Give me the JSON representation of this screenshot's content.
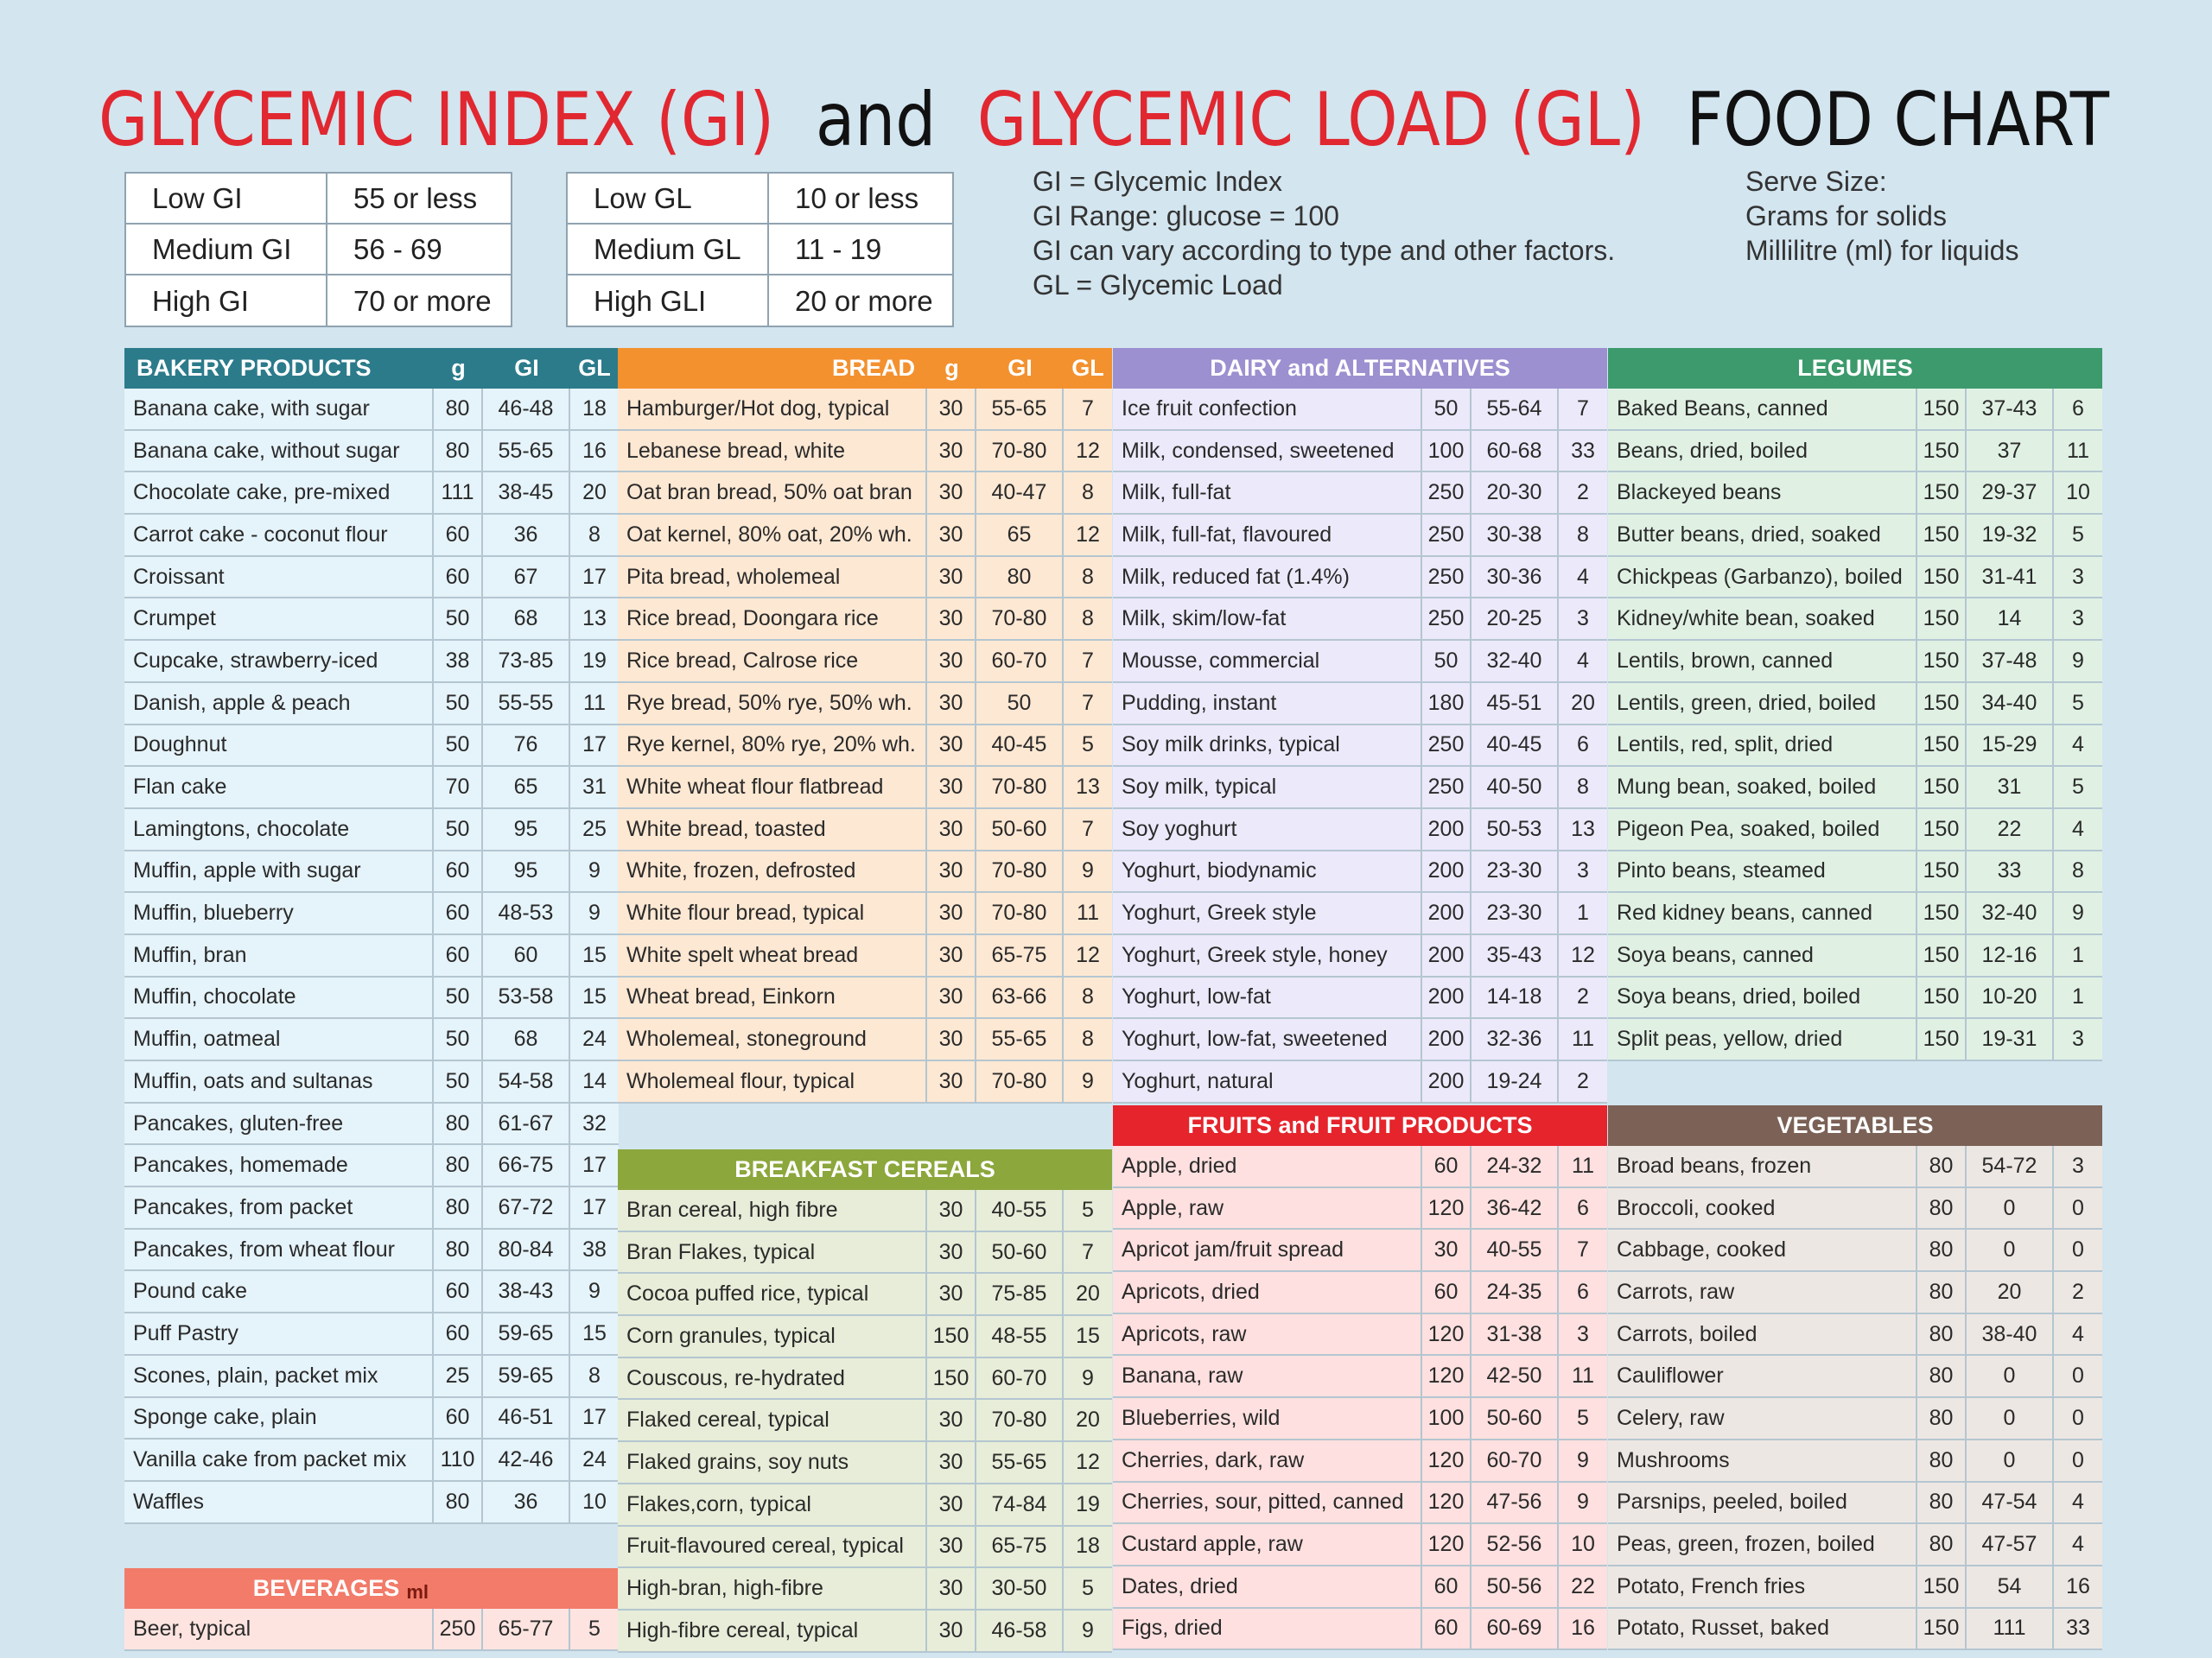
{
  "title": [
    "GLYCEMIC INDEX (GI)",
    "and",
    "GLYCEMIC LOAD (GL)",
    "FOOD CHART"
  ],
  "legend_gi": [
    [
      "Low GI",
      "55 or less"
    ],
    [
      "Medium GI",
      "56 - 69"
    ],
    [
      "High GI",
      "70 or more"
    ]
  ],
  "legend_gl": [
    [
      "Low GL",
      "10 or less"
    ],
    [
      "Medium GL",
      "11 - 19"
    ],
    [
      "High GLI",
      "20 or more"
    ]
  ],
  "notes": [
    "GI = Glycemic Index",
    "GI Range: glucose = 100",
    "GI can vary according to type and other factors.",
    "GL = Glycemic Load"
  ],
  "serve": [
    "Serve Size:",
    "Grams for solids",
    "Millilitre (ml) for liquids"
  ],
  "sections": [
    {
      "title": "BAKERY PRODUCTS",
      "columns": [
        "g",
        "GI",
        "GL"
      ],
      "rows": [
        [
          "Banana cake, with sugar",
          "80",
          "46-48",
          "18"
        ],
        [
          "Banana cake, without sugar",
          "80",
          "55-65",
          "16"
        ],
        [
          "Chocolate cake, pre-mixed",
          "111",
          "38-45",
          "20"
        ],
        [
          "Carrot cake - coconut flour",
          "60",
          "36",
          "8"
        ],
        [
          "Croissant",
          "60",
          "67",
          "17"
        ],
        [
          "Crumpet",
          "50",
          "68",
          "13"
        ],
        [
          "Cupcake, strawberry-iced",
          "38",
          "73-85",
          "19"
        ],
        [
          "Danish, apple & peach",
          "50",
          "55-55",
          "11"
        ],
        [
          "Doughnut",
          "50",
          "76",
          "17"
        ],
        [
          "Flan cake",
          "70",
          "65",
          "31"
        ],
        [
          "Lamingtons, chocolate",
          "50",
          "95",
          "25"
        ],
        [
          "Muffin, apple with sugar",
          "60",
          "95",
          "9"
        ],
        [
          "Muffin, blueberry",
          "60",
          "48-53",
          "9"
        ],
        [
          "Muffin, bran",
          "60",
          "60",
          "15"
        ],
        [
          "Muffin, chocolate",
          "50",
          "53-58",
          "15"
        ],
        [
          "Muffin, oatmeal",
          "50",
          "68",
          "24"
        ],
        [
          "Muffin, oats and sultanas",
          "50",
          "54-58",
          "14"
        ],
        [
          "Pancakes, gluten-free",
          "80",
          "61-67",
          "32"
        ],
        [
          "Pancakes, homemade",
          "80",
          "66-75",
          "17"
        ],
        [
          "Pancakes, from packet",
          "80",
          "67-72",
          "17"
        ],
        [
          "Pancakes, from wheat flour",
          "80",
          "80-84",
          "38"
        ],
        [
          "Pound cake",
          "60",
          "38-43",
          "9"
        ],
        [
          "Puff Pastry",
          "60",
          "59-65",
          "15"
        ],
        [
          "Scones, plain, packet mix",
          "25",
          "59-65",
          "8"
        ],
        [
          "Sponge cake, plain",
          "60",
          "46-51",
          "17"
        ],
        [
          "Vanilla cake from packet mix",
          "110",
          "42-46",
          "24"
        ],
        [
          "Waffles",
          "80",
          "36",
          "10"
        ]
      ]
    },
    {
      "title": "BEVERAGES",
      "unit": "ml",
      "rows": [
        [
          "Beer, typical",
          "250",
          "65-77",
          "5"
        ]
      ]
    },
    {
      "title": "BREAD",
      "columns": [
        "g",
        "GI",
        "GL"
      ],
      "rows": [
        [
          "Hamburger/Hot dog, typical",
          "30",
          "55-65",
          "7"
        ],
        [
          "Lebanese bread, white",
          "30",
          "70-80",
          "12"
        ],
        [
          "Oat bran bread, 50% oat bran",
          "30",
          "40-47",
          "8"
        ],
        [
          "Oat kernel, 80% oat, 20% wh.",
          "30",
          "65",
          "12"
        ],
        [
          "Pita bread, wholemeal",
          "30",
          "80",
          "8"
        ],
        [
          "Rice bread, Doongara rice",
          "30",
          "70-80",
          "8"
        ],
        [
          "Rice bread, Calrose rice",
          "30",
          "60-70",
          "7"
        ],
        [
          "Rye bread, 50% rye, 50% wh.",
          "30",
          "50",
          "7"
        ],
        [
          "Rye kernel, 80% rye, 20% wh.",
          "30",
          "40-45",
          "5"
        ],
        [
          "White wheat flour flatbread",
          "30",
          "70-80",
          "13"
        ],
        [
          "White bread, toasted",
          "30",
          "50-60",
          "7"
        ],
        [
          "White, frozen, defrosted",
          "30",
          "70-80",
          "9"
        ],
        [
          "White flour bread, typical",
          "30",
          "70-80",
          "11"
        ],
        [
          "White spelt wheat bread",
          "30",
          "65-75",
          "12"
        ],
        [
          "Wheat bread, Einkorn",
          "30",
          "63-66",
          "8"
        ],
        [
          "Wholemeal, stoneground",
          "30",
          "55-65",
          "8"
        ],
        [
          "Wholemeal flour, typical",
          "30",
          "70-80",
          "9"
        ]
      ]
    },
    {
      "title": "BREAKFAST CEREALS",
      "rows": [
        [
          "Bran cereal, high fibre",
          "30",
          "40-55",
          "5"
        ],
        [
          "Bran Flakes, typical",
          "30",
          "50-60",
          "7"
        ],
        [
          "Cocoa puffed rice, typical",
          "30",
          "75-85",
          "20"
        ],
        [
          "Corn granules, typical",
          "150",
          "48-55",
          "15"
        ],
        [
          "Couscous, re-hydrated",
          "150",
          "60-70",
          "9"
        ],
        [
          "Flaked cereal, typical",
          "30",
          "70-80",
          "20"
        ],
        [
          "Flaked grains, soy nuts",
          "30",
          "55-65",
          "12"
        ],
        [
          "Flakes,corn, typical",
          "30",
          "74-84",
          "19"
        ],
        [
          "Fruit-flavoured cereal, typical",
          "30",
          "65-75",
          "18"
        ],
        [
          "High-bran, high-fibre",
          "30",
          "30-50",
          "5"
        ],
        [
          "High-fibre cereal, typical",
          "30",
          "46-58",
          "9"
        ]
      ]
    },
    {
      "title": "DAIRY and ALTERNATIVES",
      "rows": [
        [
          "Ice fruit confection",
          "50",
          "55-64",
          "7"
        ],
        [
          "Milk, condensed, sweetened",
          "100",
          "60-68",
          "33"
        ],
        [
          "Milk, full-fat",
          "250",
          "20-30",
          "2"
        ],
        [
          "Milk, full-fat, flavoured",
          "250",
          "30-38",
          "8"
        ],
        [
          "Milk, reduced fat (1.4%)",
          "250",
          "30-36",
          "4"
        ],
        [
          "Milk, skim/low-fat",
          "250",
          "20-25",
          "3"
        ],
        [
          "Mousse, commercial",
          "50",
          "32-40",
          "4"
        ],
        [
          "Pudding, instant",
          "180",
          "45-51",
          "20"
        ],
        [
          "Soy milk drinks, typical",
          "250",
          "40-45",
          "6"
        ],
        [
          "Soy milk, typical",
          "250",
          "40-50",
          "8"
        ],
        [
          "Soy yoghurt",
          "200",
          "50-53",
          "13"
        ],
        [
          "Yoghurt, biodynamic",
          "200",
          "23-30",
          "3"
        ],
        [
          "Yoghurt, Greek style",
          "200",
          "23-30",
          "1"
        ],
        [
          "Yoghurt, Greek style, honey",
          "200",
          "35-43",
          "12"
        ],
        [
          "Yoghurt, low-fat",
          "200",
          "14-18",
          "2"
        ],
        [
          "Yoghurt, low-fat, sweetened",
          "200",
          "32-36",
          "11"
        ],
        [
          "Yoghurt, natural",
          "200",
          "19-24",
          "2"
        ]
      ]
    },
    {
      "title": "FRUITS and FRUIT PRODUCTS",
      "rows": [
        [
          "Apple, dried",
          "60",
          "24-32",
          "11"
        ],
        [
          "Apple, raw",
          "120",
          "36-42",
          "6"
        ],
        [
          "Apricot jam/fruit spread",
          "30",
          "40-55",
          "7"
        ],
        [
          "Apricots, dried",
          "60",
          "24-35",
          "6"
        ],
        [
          "Apricots, raw",
          "120",
          "31-38",
          "3"
        ],
        [
          "Banana, raw",
          "120",
          "42-50",
          "11"
        ],
        [
          "Blueberries, wild",
          "100",
          "50-60",
          "5"
        ],
        [
          "Cherries, dark, raw",
          "120",
          "60-70",
          "9"
        ],
        [
          "Cherries, sour, pitted, canned",
          "120",
          "47-56",
          "9"
        ],
        [
          "Custard apple, raw",
          "120",
          "52-56",
          "10"
        ],
        [
          "Dates, dried",
          "60",
          "50-56",
          "22"
        ],
        [
          "Figs, dried",
          "60",
          "60-69",
          "16"
        ]
      ]
    },
    {
      "title": "LEGUMES",
      "rows": [
        [
          "Baked Beans, canned",
          "150",
          "37-43",
          "6"
        ],
        [
          "Beans, dried, boiled",
          "150",
          "37",
          "11"
        ],
        [
          "Blackeyed beans",
          "150",
          "29-37",
          "10"
        ],
        [
          "Butter beans, dried, soaked",
          "150",
          "19-32",
          "5"
        ],
        [
          "Chickpeas (Garbanzo), boiled",
          "150",
          "31-41",
          "3"
        ],
        [
          "Kidney/white bean, soaked",
          "150",
          "14",
          "3"
        ],
        [
          "Lentils, brown, canned",
          "150",
          "37-48",
          "9"
        ],
        [
          "Lentils, green, dried, boiled",
          "150",
          "34-40",
          "5"
        ],
        [
          "Lentils, red, split, dried",
          "150",
          "15-29",
          "4"
        ],
        [
          "Mung bean, soaked, boiled",
          "150",
          "31",
          "5"
        ],
        [
          "Pigeon Pea, soaked, boiled",
          "150",
          "22",
          "4"
        ],
        [
          "Pinto beans, steamed",
          "150",
          "33",
          "8"
        ],
        [
          "Red kidney beans, canned",
          "150",
          "32-40",
          "9"
        ],
        [
          "Soya beans, canned",
          "150",
          "12-16",
          "1"
        ],
        [
          "Soya beans, dried, boiled",
          "150",
          "10-20",
          "1"
        ],
        [
          "Split peas, yellow, dried",
          "150",
          "19-31",
          "3"
        ]
      ]
    },
    {
      "title": "VEGETABLES",
      "rows": [
        [
          "Broad beans, frozen",
          "80",
          "54-72",
          "3"
        ],
        [
          "Broccoli, cooked",
          "80",
          "0",
          "0"
        ],
        [
          "Cabbage, cooked",
          "80",
          "0",
          "0"
        ],
        [
          "Carrots, raw",
          "80",
          "20",
          "2"
        ],
        [
          "Carrots, boiled",
          "80",
          "38-40",
          "4"
        ],
        [
          "Cauliflower",
          "80",
          "0",
          "0"
        ],
        [
          "Celery, raw",
          "80",
          "0",
          "0"
        ],
        [
          "Mushrooms",
          "80",
          "0",
          "0"
        ],
        [
          "Parsnips, peeled, boiled",
          "80",
          "47-54",
          "4"
        ],
        [
          "Peas, green, frozen, boiled",
          "80",
          "47-57",
          "4"
        ],
        [
          "Potato, French fries",
          "150",
          "54",
          "16"
        ],
        [
          "Potato, Russet, baked",
          "150",
          "111",
          "33"
        ]
      ]
    }
  ]
}
